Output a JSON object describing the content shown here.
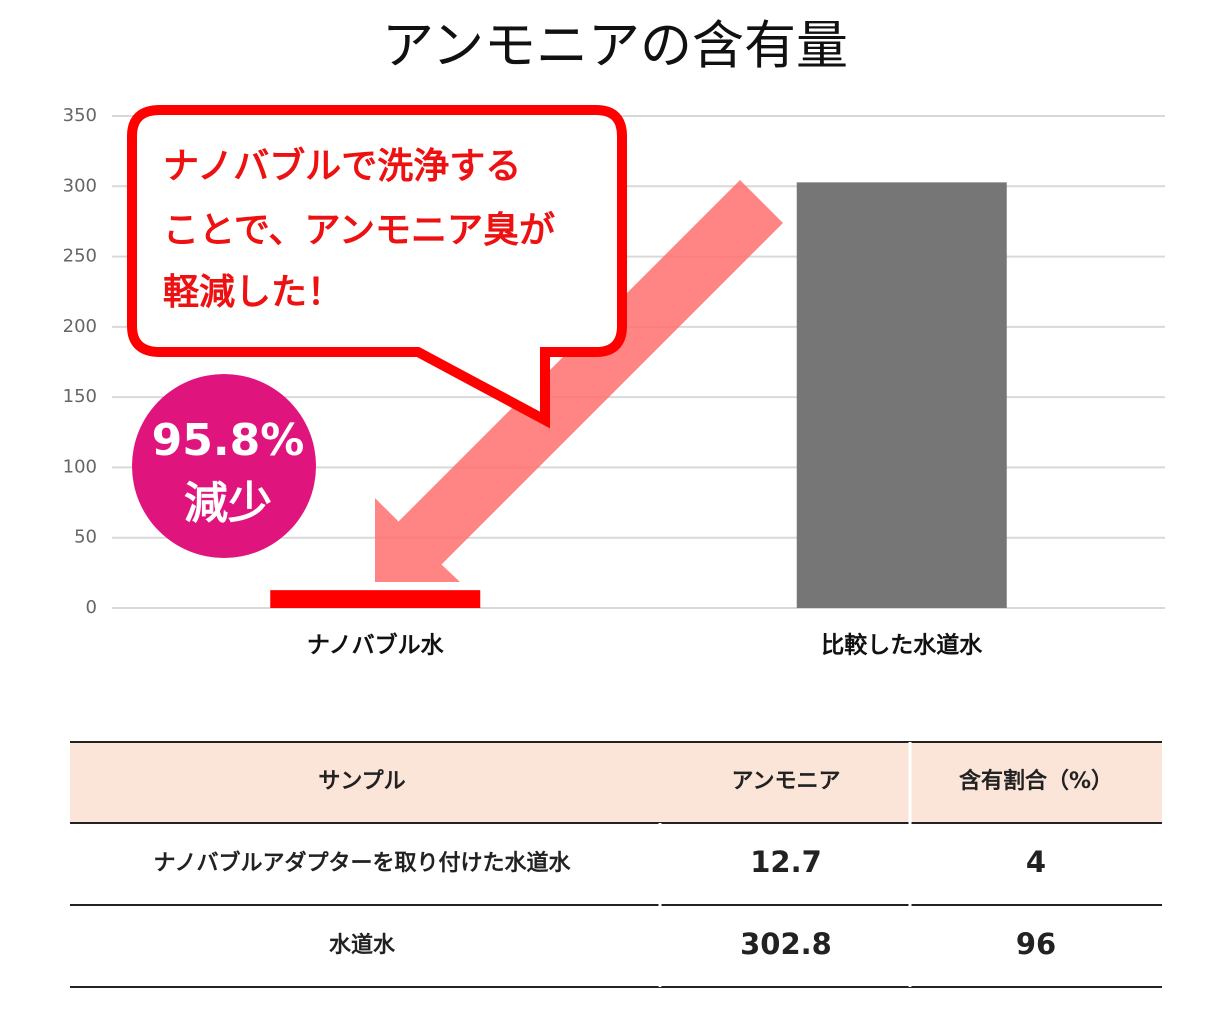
{
  "chart_data": {
    "type": "bar",
    "title": "アンモニアの含有量",
    "categories": [
      "ナノバブル水",
      "比較した水道水"
    ],
    "values": [
      12.7,
      302.8
    ],
    "colors": [
      "#ff0000",
      "#767676"
    ],
    "ylim": [
      0,
      350
    ],
    "yticks": [
      0,
      50,
      100,
      150,
      200,
      250,
      300,
      350
    ],
    "grid": true,
    "callout": [
      "ナノバブルで洗浄する",
      "ことで、アンモニア臭が",
      "軽減した！"
    ],
    "badge": [
      "95.8%",
      "減少"
    ]
  },
  "table": {
    "header": [
      "サンプル",
      "アンモニア",
      "含有割合（%）"
    ],
    "rows": [
      [
        "ナノバブルアダプターを取り付けた水道水",
        12.7,
        4
      ],
      [
        "水道水",
        302.8,
        96
      ]
    ]
  }
}
